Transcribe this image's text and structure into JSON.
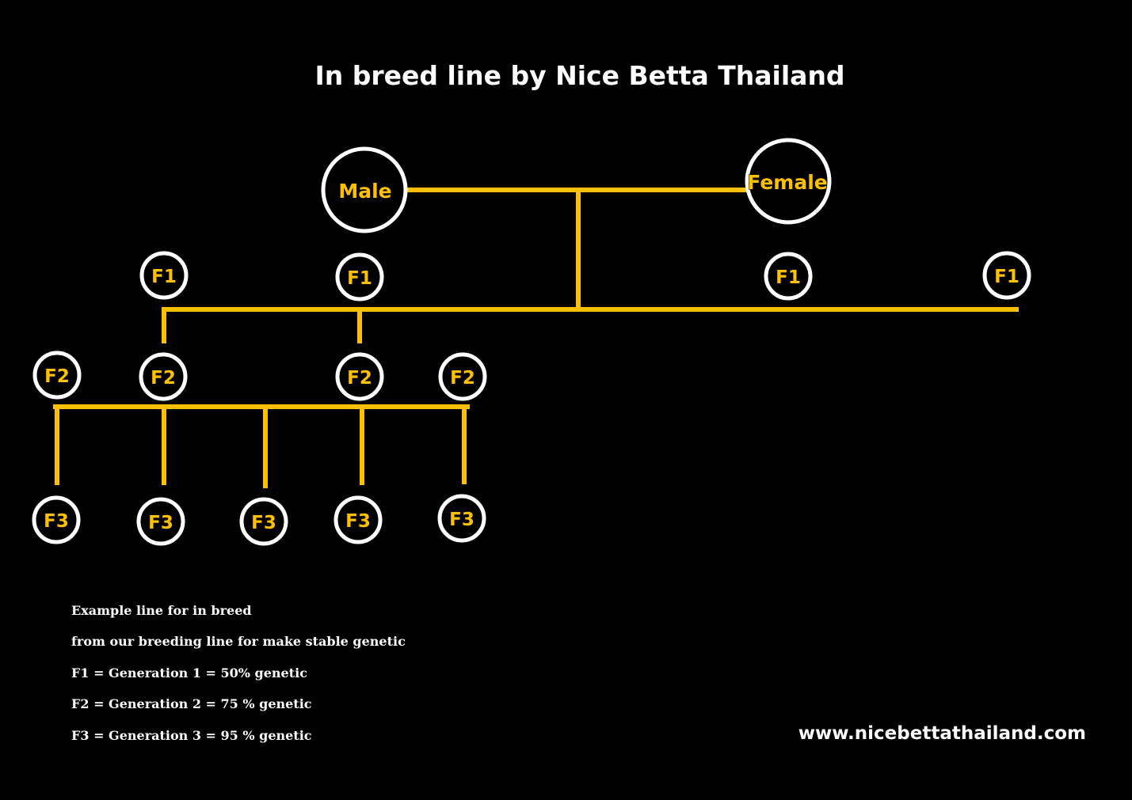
{
  "title": "In breed line by Nice Betta Thailand",
  "colors": {
    "background": "#000000",
    "line": "#ffc000",
    "label": "#ffc000",
    "ring": "#ffffff",
    "text": "#ffffff"
  },
  "parents": {
    "male": "Male",
    "female": "Female"
  },
  "generations": {
    "f1": [
      "F1",
      "F1",
      "F1",
      "F1"
    ],
    "f2": [
      "F2",
      "F2",
      "F2",
      "F2"
    ],
    "f3": [
      "F3",
      "F3",
      "F3",
      "F3",
      "F3"
    ]
  },
  "notes": [
    "Example line for in breed",
    "from our breeding line  for make stable genetic",
    "F1 = Generation 1  = 50% genetic",
    "F2 = Generation 2  = 75 % genetic",
    "F3 = Generation 3  = 95 % genetic"
  ],
  "website": "www.nicebettathailand.com"
}
